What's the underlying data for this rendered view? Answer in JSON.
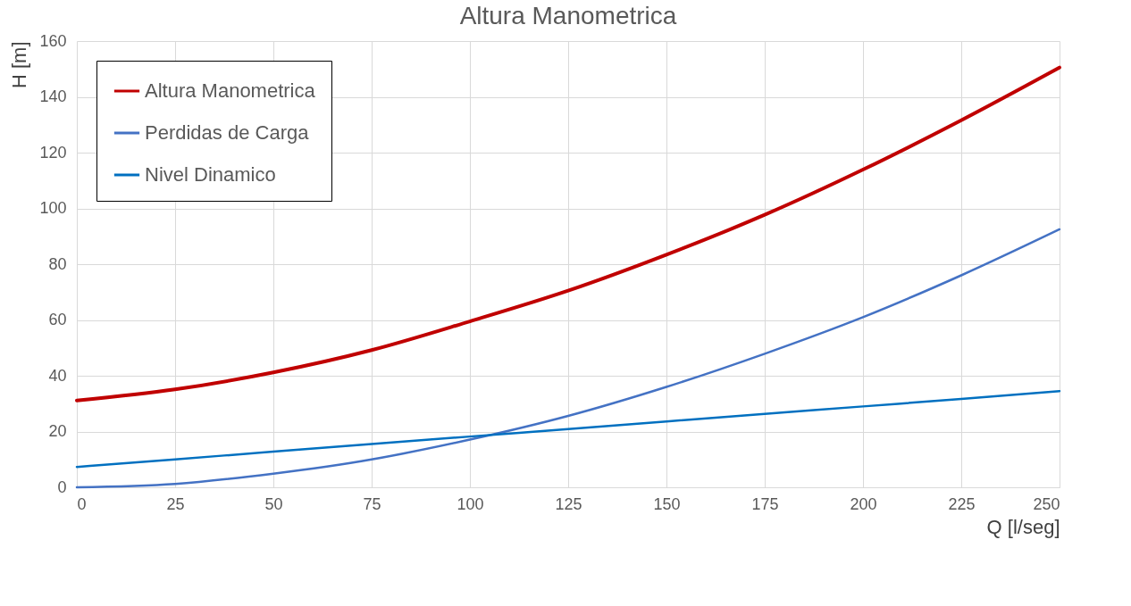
{
  "chart_data": {
    "type": "line",
    "title": "Altura Manometrica",
    "xlabel": "Q [l/seg]",
    "ylabel": "H [m]",
    "x": [
      0,
      25,
      50,
      75,
      100,
      125,
      150,
      175,
      200,
      225,
      250
    ],
    "series": [
      {
        "name": "Altura Manometrica",
        "color": "#c00000",
        "values": [
          31.1,
          35.1,
          41.2,
          49.2,
          59.5,
          70.5,
          83.4,
          97.7,
          113.9,
          131.6,
          150.5
        ]
      },
      {
        "name": "Perdidas de Carga",
        "color": "#4472c4",
        "values": [
          0,
          1.2,
          4.9,
          10,
          17.1,
          25.6,
          36,
          47.9,
          61,
          76,
          92.5
        ]
      },
      {
        "name": "Nivel Dinamico",
        "color": "#0070c0",
        "values": [
          7.3,
          10,
          12.8,
          15.5,
          18.2,
          20.9,
          23.6,
          26.3,
          29,
          31.7,
          34.5
        ]
      }
    ],
    "xlim": [
      0,
      250
    ],
    "xticks": [
      0,
      25,
      50,
      75,
      100,
      125,
      150,
      175,
      200,
      225,
      250
    ],
    "ylim": [
      0,
      160
    ],
    "yticks": [
      0,
      20,
      40,
      60,
      80,
      100,
      120,
      140,
      160
    ],
    "grid": true,
    "legend": "top left",
    "marker": "none",
    "line_style": "solid"
  }
}
